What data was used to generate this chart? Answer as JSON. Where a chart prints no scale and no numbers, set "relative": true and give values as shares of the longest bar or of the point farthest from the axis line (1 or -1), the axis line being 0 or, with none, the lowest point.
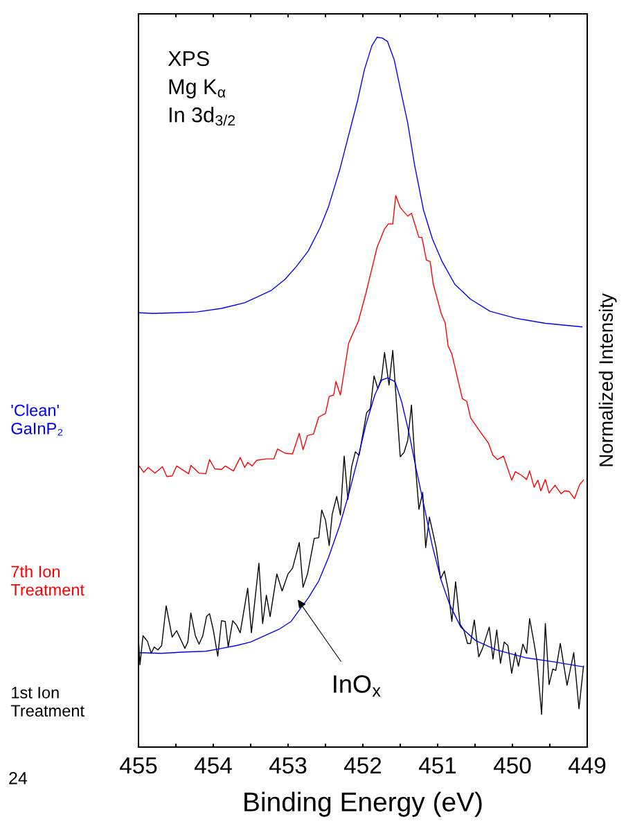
{
  "chart_data": {
    "type": "line",
    "relative": true,
    "xlabel": "Binding Energy (eV)",
    "ylabel": "Normalized Intensity",
    "xlim": [
      455,
      449
    ],
    "xticks": [
      455,
      {
        "value": 454.5,
        "label": null
      },
      454,
      {
        "value": 453.5,
        "label": null
      },
      453,
      {
        "value": 452.5,
        "label": null
      },
      452,
      {
        "value": 451.5,
        "label": null
      },
      451,
      {
        "value": 450.5,
        "label": null
      },
      450,
      {
        "value": 449.5,
        "label": null
      },
      449
    ],
    "tick_labels": "x",
    "grid": false,
    "legend": false,
    "marker": "none",
    "line_style": "solid",
    "annotations": [
      "XPS\nMg K$_{α}$\nIn 3d$_{3/2}$",
      "InO$_{x}$",
      "24"
    ],
    "series": [
      {
        "name": "'Clean'\nGaInP₂",
        "color": "#0000ff",
        "x": [
          455.0,
          454.81,
          454.47,
          454.22,
          453.89,
          453.58,
          453.23,
          453.04,
          452.89,
          452.73,
          452.57,
          452.46,
          452.31,
          452.19,
          452.07,
          451.98,
          451.88,
          451.81,
          451.74,
          451.67,
          451.58,
          451.5,
          451.4,
          451.31,
          451.19,
          451.07,
          450.94,
          450.77,
          450.56,
          450.3,
          449.95,
          449.56,
          449.07
        ],
        "values": [
          0.612,
          0.611,
          0.612,
          0.613,
          0.618,
          0.626,
          0.643,
          0.659,
          0.677,
          0.699,
          0.732,
          0.761,
          0.813,
          0.862,
          0.911,
          0.954,
          0.988,
          1.0,
          0.999,
          0.994,
          0.968,
          0.928,
          0.879,
          0.821,
          0.757,
          0.716,
          0.684,
          0.652,
          0.631,
          0.614,
          0.604,
          0.597,
          0.592
        ]
      },
      {
        "name": "7th Ion\nTreatment",
        "color": "#ff0000",
        "x": [
          455.0,
          454.99,
          454.93,
          454.87,
          454.78,
          454.68,
          454.62,
          454.55,
          454.49,
          454.33,
          454.3,
          454.19,
          454.1,
          454.05,
          453.98,
          453.89,
          453.84,
          453.73,
          453.64,
          453.58,
          453.54,
          453.48,
          453.42,
          453.29,
          453.19,
          453.14,
          453.04,
          452.94,
          452.85,
          452.8,
          452.74,
          452.66,
          452.59,
          452.5,
          452.45,
          452.39,
          452.36,
          452.3,
          452.2,
          452.19,
          452.06,
          451.96,
          451.9,
          451.81,
          451.71,
          451.66,
          451.6,
          451.56,
          451.5,
          451.4,
          451.35,
          451.25,
          451.21,
          451.15,
          451.1,
          451.06,
          450.95,
          450.9,
          450.86,
          450.81,
          450.67,
          450.61,
          450.56,
          450.45,
          450.32,
          450.26,
          450.2,
          450.12,
          450.01,
          449.96,
          449.88,
          449.81,
          449.77,
          449.71,
          449.66,
          449.62,
          449.56,
          449.51,
          449.43,
          449.35,
          449.3,
          449.24,
          449.17,
          449.1,
          449.05
        ],
        "values": [
          0.391,
          0.396,
          0.387,
          0.394,
          0.386,
          0.395,
          0.381,
          0.382,
          0.396,
          0.385,
          0.397,
          0.386,
          0.385,
          0.405,
          0.392,
          0.391,
          0.396,
          0.389,
          0.408,
          0.394,
          0.401,
          0.396,
          0.404,
          0.406,
          0.406,
          0.42,
          0.414,
          0.413,
          0.442,
          0.419,
          0.439,
          0.441,
          0.465,
          0.47,
          0.494,
          0.496,
          0.515,
          0.496,
          0.562,
          0.569,
          0.6,
          0.639,
          0.665,
          0.704,
          0.73,
          0.737,
          0.737,
          0.777,
          0.76,
          0.748,
          0.752,
          0.718,
          0.718,
          0.686,
          0.684,
          0.653,
          0.61,
          0.598,
          0.565,
          0.554,
          0.491,
          0.487,
          0.464,
          0.447,
          0.428,
          0.411,
          0.405,
          0.41,
          0.376,
          0.388,
          0.383,
          0.377,
          0.389,
          0.366,
          0.376,
          0.361,
          0.377,
          0.358,
          0.369,
          0.357,
          0.361,
          0.36,
          0.35,
          0.37,
          0.376
        ]
      },
      {
        "name": "1st Ion\nTreatment",
        "color": "#000000",
        "x": [
          455.0,
          454.98,
          454.94,
          454.88,
          454.83,
          454.79,
          454.74,
          454.69,
          454.63,
          454.55,
          454.49,
          454.38,
          454.34,
          454.3,
          454.24,
          454.19,
          454.14,
          454.09,
          454.05,
          454.0,
          453.94,
          453.89,
          453.84,
          453.8,
          453.74,
          453.69,
          453.64,
          453.54,
          453.49,
          453.39,
          453.34,
          453.29,
          453.24,
          453.15,
          453.08,
          453.0,
          452.94,
          452.85,
          452.8,
          452.74,
          452.65,
          452.59,
          452.55,
          452.5,
          452.45,
          452.41,
          452.35,
          452.3,
          452.25,
          452.2,
          452.15,
          452.1,
          452.05,
          451.95,
          451.9,
          451.85,
          451.8,
          451.75,
          451.71,
          451.65,
          451.6,
          451.5,
          451.45,
          451.4,
          451.35,
          451.31,
          451.25,
          451.2,
          451.16,
          451.11,
          451.02,
          450.96,
          450.91,
          450.86,
          450.81,
          450.76,
          450.7,
          450.65,
          450.6,
          450.56,
          450.51,
          450.45,
          450.4,
          450.31,
          450.26,
          450.21,
          450.16,
          450.11,
          450.06,
          450.01,
          449.96,
          449.92,
          449.86,
          449.81,
          449.77,
          449.71,
          449.67,
          449.61,
          449.56,
          449.51,
          449.46,
          449.42,
          449.36,
          449.27,
          449.18,
          449.11,
          449.05
        ],
        "values": [
          0.152,
          0.116,
          0.157,
          0.149,
          0.132,
          0.141,
          0.137,
          0.143,
          0.199,
          0.155,
          0.164,
          0.139,
          0.148,
          0.189,
          0.157,
          0.145,
          0.157,
          0.184,
          0.188,
          0.165,
          0.128,
          0.178,
          0.177,
          0.141,
          0.178,
          0.172,
          0.161,
          0.224,
          0.161,
          0.259,
          0.174,
          0.214,
          0.184,
          0.244,
          0.22,
          0.244,
          0.252,
          0.288,
          0.225,
          0.244,
          0.294,
          0.295,
          0.334,
          0.32,
          0.284,
          0.328,
          0.353,
          0.327,
          0.41,
          0.349,
          0.395,
          0.416,
          0.411,
          0.471,
          0.477,
          0.523,
          0.505,
          0.52,
          0.556,
          0.51,
          0.559,
          0.409,
          0.415,
          0.432,
          0.482,
          0.413,
          0.335,
          0.359,
          0.281,
          0.324,
          0.281,
          0.237,
          0.248,
          0.222,
          0.177,
          0.233,
          0.173,
          0.165,
          0.146,
          0.146,
          0.179,
          0.127,
          0.139,
          0.169,
          0.124,
          0.165,
          0.118,
          0.148,
          0.143,
          0.104,
          0.133,
          0.114,
          0.145,
          0.132,
          0.181,
          0.146,
          0.12,
          0.046,
          0.174,
          0.088,
          0.11,
          0.108,
          0.146,
          0.087,
          0.133,
          0.054,
          0.114
        ]
      },
      {
        "color": "#0000ff",
        "x": [
          455.0,
          454.7,
          454.37,
          454.1,
          453.89,
          453.69,
          453.5,
          453.31,
          453.12,
          452.96,
          452.85,
          452.73,
          452.59,
          452.46,
          452.31,
          452.19,
          452.07,
          451.96,
          451.84,
          451.75,
          451.67,
          451.57,
          451.48,
          451.38,
          451.29,
          451.19,
          451.07,
          450.95,
          450.84,
          450.69,
          450.49,
          450.22,
          449.83,
          449.44,
          449.05
        ],
        "values": [
          0.133,
          0.132,
          0.134,
          0.135,
          0.139,
          0.143,
          0.148,
          0.157,
          0.166,
          0.177,
          0.193,
          0.21,
          0.234,
          0.267,
          0.312,
          0.356,
          0.405,
          0.454,
          0.496,
          0.517,
          0.52,
          0.515,
          0.486,
          0.441,
          0.393,
          0.344,
          0.283,
          0.234,
          0.201,
          0.169,
          0.15,
          0.137,
          0.126,
          0.12,
          0.113
        ]
      }
    ]
  }
}
